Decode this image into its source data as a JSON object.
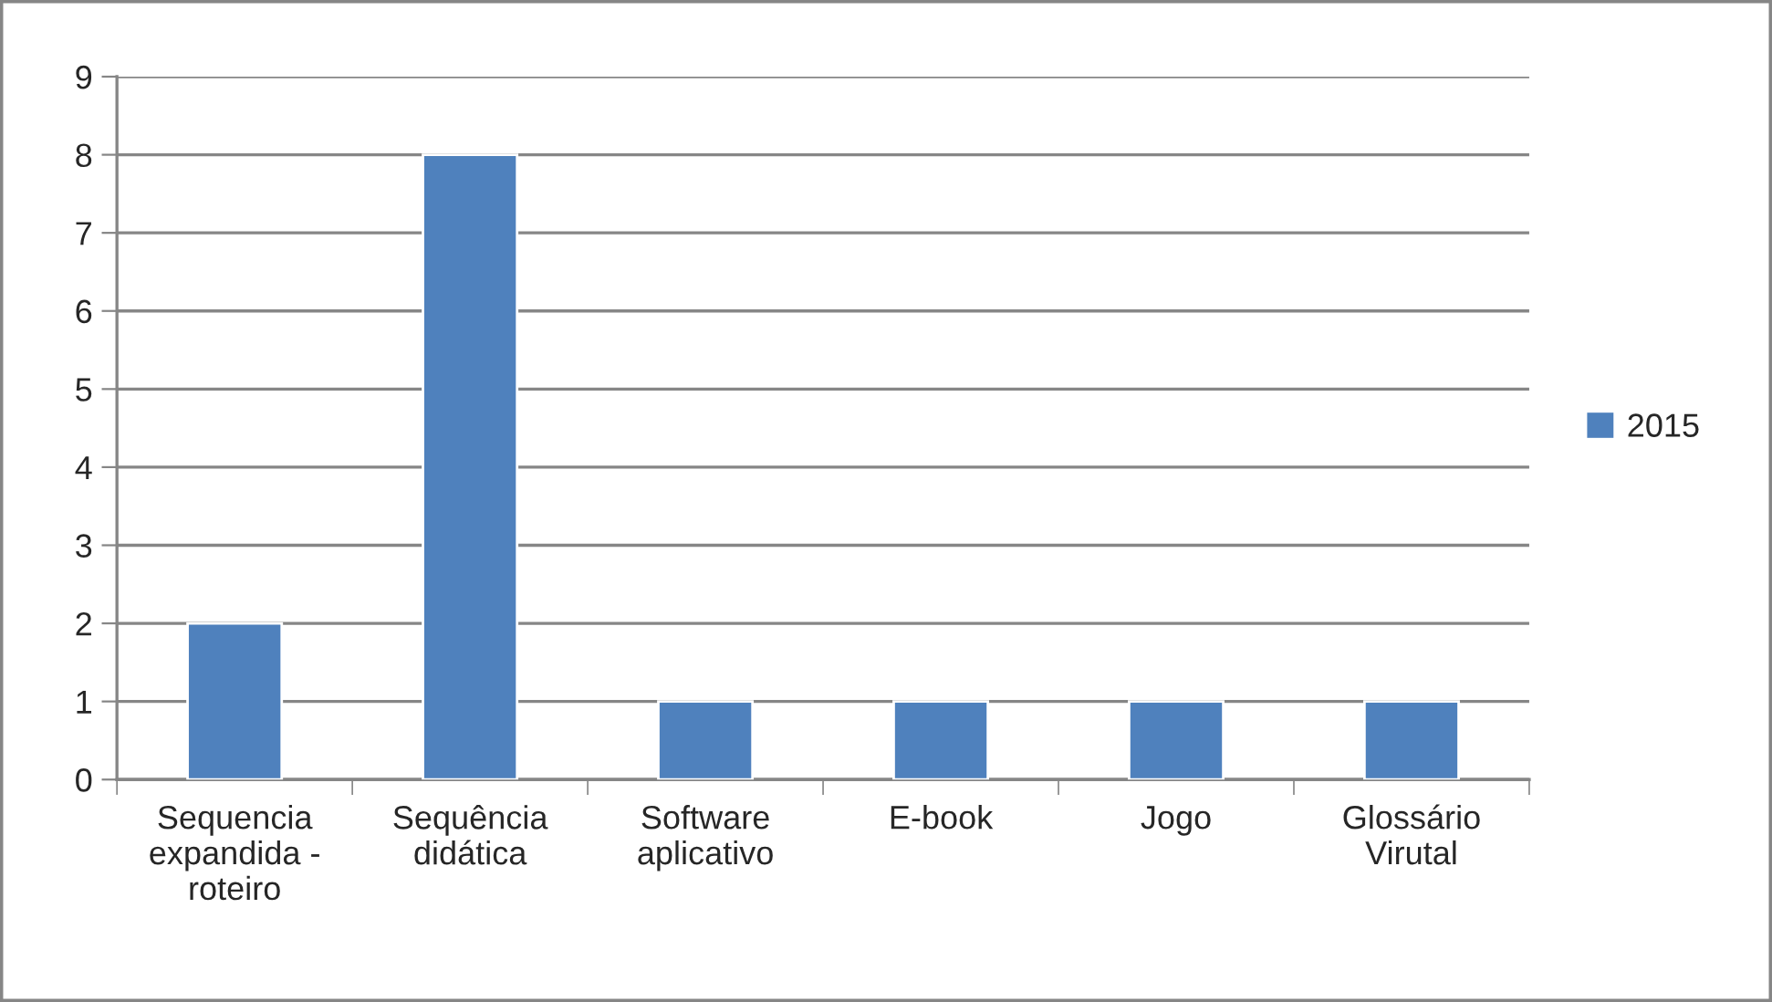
{
  "chart_data": {
    "type": "bar",
    "categories": [
      "Sequencia\nexpandida -\nroteiro",
      "Sequência\ndidática",
      "Software\naplicativo",
      "E-book",
      "Jogo",
      "Glossário\nVirutal"
    ],
    "series": [
      {
        "name": "2015",
        "color": "#4f81bd",
        "values": [
          2,
          8,
          1,
          1,
          1,
          1
        ]
      }
    ],
    "ylim": [
      0,
      9
    ],
    "yticks": [
      0,
      1,
      2,
      3,
      4,
      5,
      6,
      7,
      8,
      9
    ],
    "grid": "y",
    "legend": "right"
  }
}
